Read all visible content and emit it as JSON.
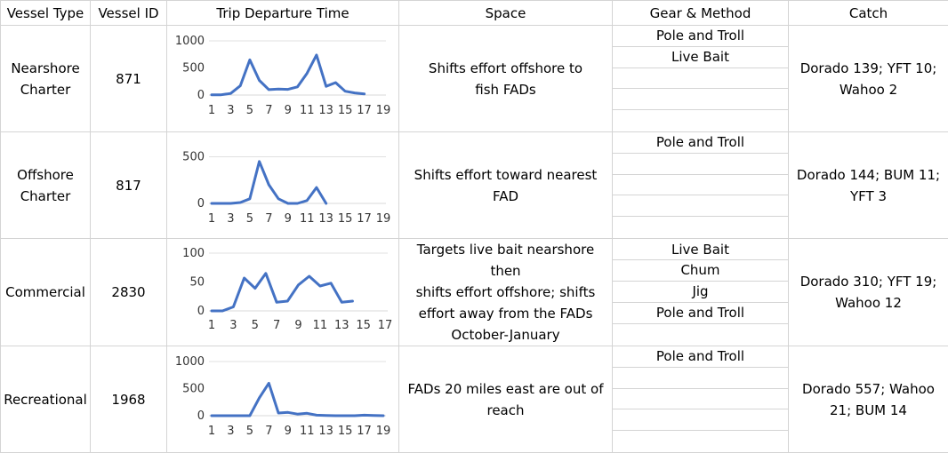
{
  "headers": [
    "Vessel Type",
    "Vessel ID",
    "Trip Departure Time",
    "Space",
    "Gear & Method",
    "Catch"
  ],
  "rows": [
    {
      "type_lines": [
        "Nearshore",
        "Charter"
      ],
      "id": "871",
      "space_lines": [
        "Shifts effort offshore to",
        "fish FADs"
      ],
      "gear": [
        "Pole and Troll",
        "Live Bait",
        "",
        "",
        ""
      ],
      "catch_lines": [
        "Dorado 139; YFT 10;",
        "Wahoo 2"
      ]
    },
    {
      "type_lines": [
        "Offshore",
        "Charter"
      ],
      "id": "817",
      "space_lines": [
        "Shifts effort toward nearest",
        "FAD"
      ],
      "gear": [
        "Pole and Troll",
        "",
        "",
        "",
        ""
      ],
      "catch_lines": [
        "Dorado 144; BUM 11;",
        "YFT 3"
      ]
    },
    {
      "type_lines": [
        "Commercial"
      ],
      "id": "2830",
      "space_lines": [
        "Targets live bait nearshore then",
        "shifts effort offshore; shifts",
        "effort away from the FADs",
        "October-January"
      ],
      "gear": [
        "Live Bait",
        "Chum",
        "Jig",
        "Pole and Troll",
        ""
      ],
      "catch_lines": [
        "Dorado 310; YFT 19;",
        "Wahoo 12"
      ]
    },
    {
      "type_lines": [
        "Recreational"
      ],
      "id": "1968",
      "space_lines": [
        "FADs 20 miles east are out of",
        "reach"
      ],
      "gear": [
        "Pole and Troll",
        "",
        "",
        "",
        ""
      ],
      "catch_lines": [
        "Dorado 557; Wahoo",
        "21; BUM 14"
      ]
    }
  ],
  "chart_data": [
    {
      "type": "line",
      "x": [
        1,
        2,
        3,
        4,
        5,
        6,
        7,
        8,
        9,
        10,
        11,
        12,
        13,
        14,
        15,
        16,
        17,
        18,
        19
      ],
      "x_tick_labels": [
        "1",
        "3",
        "5",
        "7",
        "9",
        "11",
        "13",
        "15",
        "17",
        "19"
      ],
      "y_tick_labels": [
        "0",
        "500",
        "1000"
      ],
      "ylim": [
        0,
        1000
      ],
      "series": [
        {
          "values": [
            5,
            5,
            30,
            170,
            650,
            270,
            100,
            110,
            105,
            150,
            400,
            740,
            160,
            230,
            70,
            40,
            20,
            null,
            null
          ],
          "color": "#4472c4"
        }
      ]
    },
    {
      "type": "line",
      "x": [
        1,
        2,
        3,
        4,
        5,
        6,
        7,
        8,
        9,
        10,
        11,
        12,
        13,
        14,
        15,
        16,
        17,
        18,
        19
      ],
      "x_tick_labels": [
        "1",
        "3",
        "5",
        "7",
        "9",
        "11",
        "13",
        "15",
        "17",
        "19"
      ],
      "y_tick_labels": [
        "0",
        "500"
      ],
      "ylim": [
        0,
        600
      ],
      "series": [
        {
          "values": [
            0,
            0,
            0,
            10,
            50,
            450,
            200,
            50,
            0,
            0,
            30,
            170,
            0,
            null,
            null,
            null,
            null,
            null,
            null
          ],
          "color": "#4472c4"
        }
      ]
    },
    {
      "type": "line",
      "x": [
        1,
        2,
        3,
        4,
        5,
        6,
        7,
        8,
        9,
        10,
        11,
        12,
        13,
        14,
        15,
        16,
        17
      ],
      "x_tick_labels": [
        "1",
        "3",
        "5",
        "7",
        "9",
        "11",
        "13",
        "15",
        "17"
      ],
      "y_tick_labels": [
        "0",
        "50",
        "100"
      ],
      "ylim": [
        0,
        100
      ],
      "series": [
        {
          "values": [
            0,
            0,
            7,
            57,
            39,
            65,
            15,
            17,
            45,
            60,
            43,
            48,
            15,
            17,
            null,
            null,
            null
          ],
          "color": "#4472c4"
        }
      ]
    },
    {
      "type": "line",
      "x": [
        1,
        2,
        3,
        4,
        5,
        6,
        7,
        8,
        9,
        10,
        11,
        12,
        13,
        14,
        15,
        16,
        17,
        18,
        19
      ],
      "x_tick_labels": [
        "1",
        "3",
        "5",
        "7",
        "9",
        "11",
        "13",
        "15",
        "17",
        "19"
      ],
      "y_tick_labels": [
        "0",
        "500",
        "1000"
      ],
      "ylim": [
        0,
        1000
      ],
      "series": [
        {
          "values": [
            0,
            0,
            0,
            0,
            0,
            330,
            600,
            50,
            60,
            30,
            45,
            10,
            5,
            0,
            0,
            0,
            10,
            5,
            0
          ],
          "color": "#4472c4"
        }
      ]
    }
  ]
}
